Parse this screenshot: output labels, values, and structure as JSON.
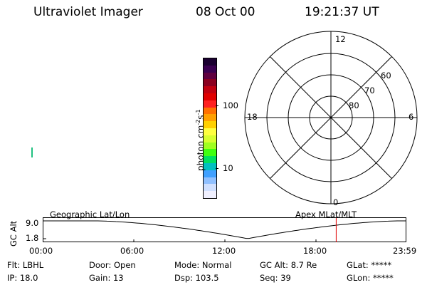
{
  "header": {
    "instrument": "Ultraviolet Imager",
    "date": "08 Oct 00",
    "time": "19:21:37 UT"
  },
  "colorbar": {
    "label": "photon cm",
    "label_exp1": "-2",
    "label_s": "s",
    "label_exp2": "-1",
    "tick_100": "100",
    "tick_10": "10",
    "colors_top_to_bottom": [
      "#1a0030",
      "#3a0050",
      "#600040",
      "#8a0020",
      "#c00010",
      "#e00000",
      "#ff2020",
      "#ff7000",
      "#ffa000",
      "#ffd000",
      "#ffff40",
      "#d8ff30",
      "#a0ff20",
      "#40ff10",
      "#00e060",
      "#00c0c0",
      "#40a0ff",
      "#90c0ff",
      "#d0e0ff",
      "#f0f0ff"
    ]
  },
  "polar": {
    "label_12": "12",
    "label_18": "18",
    "label_6": "6",
    "label_0": "0",
    "label_60": "60",
    "label_70": "70",
    "label_80": "80"
  },
  "timeline": {
    "geo_label": "Geographic Lat/Lon",
    "apex_label": "Apex MLat/MLT",
    "axis_title": "GC Alt",
    "y_top": "9.0",
    "y_bottom": "1.8",
    "x_ticks": [
      "00:00",
      "06:00",
      "12:00",
      "18:00",
      "23:59"
    ],
    "marker_time_hours": 19.36,
    "marker_color": "#e00000"
  },
  "footer": {
    "flt": "Flt: LBHL",
    "door": "Door: Open",
    "mode": "Mode: Normal",
    "gcalt": "GC Alt: 8.7 Re",
    "glat": "GLat: *****",
    "ip": "IP: 18.0",
    "gain": "Gain: 13",
    "dsp": "Dsp:  103.5",
    "seq": "Seq: 39",
    "glon": "GLon: *****"
  }
}
